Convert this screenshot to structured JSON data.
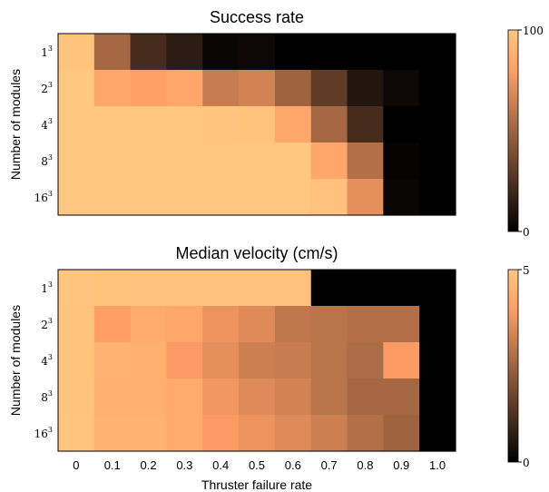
{
  "chart_data": [
    {
      "type": "heatmap",
      "title": "Success rate",
      "xlabel": "",
      "ylabel": "Number of modules",
      "x": [
        "0",
        "0.1",
        "0.2",
        "0.3",
        "0.4",
        "0.5",
        "0.6",
        "0.7",
        "0.8",
        "0.9",
        "1.0"
      ],
      "y": [
        "1",
        "2",
        "4",
        "8",
        "16"
      ],
      "y_exponent": "3",
      "x_tick_labels_shown": false,
      "colorbar": {
        "min": 0,
        "max": 100,
        "ticks": [
          "0",
          "100"
        ]
      },
      "colormap": "copper",
      "values": [
        [
          98,
          52,
          22,
          14,
          3,
          4,
          0,
          0,
          0,
          0,
          0
        ],
        [
          100,
          84,
          81,
          84,
          62,
          66,
          50,
          30,
          11,
          4,
          0
        ],
        [
          100,
          100,
          100,
          100,
          99,
          98,
          84,
          52,
          22,
          0,
          0
        ],
        [
          100,
          100,
          100,
          100,
          100,
          100,
          100,
          84,
          56,
          2,
          0
        ],
        [
          100,
          100,
          100,
          100,
          100,
          100,
          100,
          97,
          72,
          3,
          0
        ]
      ]
    },
    {
      "type": "heatmap",
      "title": "Median velocity (cm/s)",
      "xlabel": "Thruster failure rate",
      "ylabel": "Number of modules",
      "x": [
        "0",
        "0.1",
        "0.2",
        "0.3",
        "0.4",
        "0.5",
        "0.6",
        "0.7",
        "0.8",
        "0.9",
        "1.0"
      ],
      "y": [
        "1",
        "2",
        "4",
        "8",
        "16"
      ],
      "y_exponent": "3",
      "x_tick_labels_shown": true,
      "colorbar": {
        "min": 0,
        "max": 5,
        "ticks": [
          "0",
          "5"
        ]
      },
      "colormap": "copper",
      "values": [
        [
          4.95,
          4.9,
          4.85,
          4.85,
          4.85,
          4.85,
          4.85,
          0,
          0,
          0,
          0
        ],
        [
          4.9,
          4.0,
          4.3,
          4.2,
          3.7,
          3.5,
          3.0,
          2.9,
          2.8,
          2.8,
          0
        ],
        [
          4.9,
          4.5,
          4.4,
          3.9,
          3.6,
          3.2,
          3.1,
          2.9,
          2.7,
          3.9,
          0
        ],
        [
          4.9,
          4.4,
          4.4,
          4.3,
          3.8,
          3.5,
          3.3,
          2.9,
          2.6,
          2.6,
          0
        ],
        [
          4.95,
          4.5,
          4.5,
          4.3,
          3.9,
          3.7,
          3.5,
          3.2,
          2.8,
          2.5,
          0
        ]
      ]
    }
  ]
}
